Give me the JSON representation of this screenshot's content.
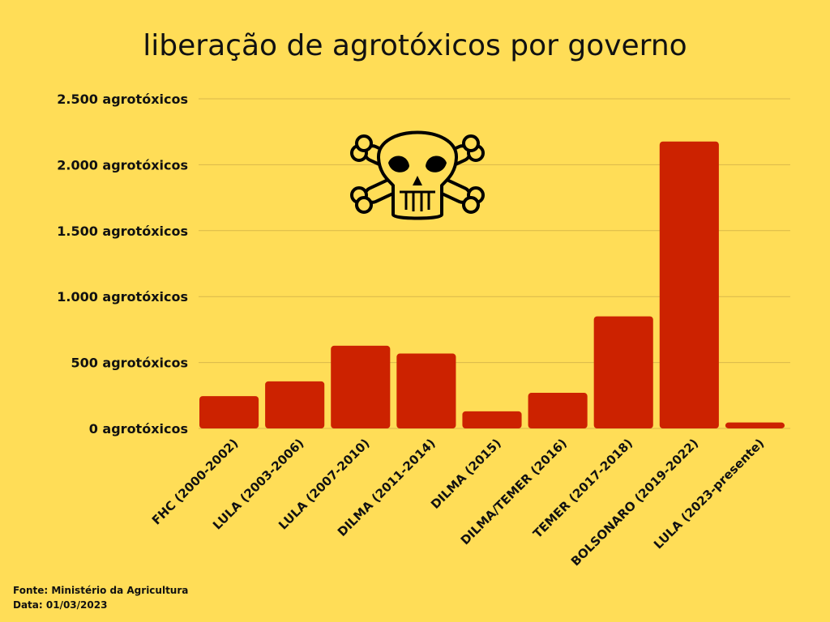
{
  "chart_data": {
    "type": "bar",
    "title": "liberação de agrotóxicos por governo",
    "categories": [
      "FHC (2000-2002)",
      "LULA (2003-2006)",
      "LULA (2007-2010)",
      "DILMA (2011-2014)",
      "DILMA (2015)",
      "DILMA/TEMER (2016)",
      "TEMER (2017-2018)",
      "BOLSONARO (2019-2022)",
      "LULA (2023-presente)"
    ],
    "values": [
      245,
      357,
      627,
      568,
      130,
      270,
      850,
      2176,
      45
    ],
    "ylim": [
      0,
      2500
    ],
    "yticks": [
      0,
      500,
      1000,
      1500,
      2000,
      2500
    ],
    "ytick_labels": [
      "0 agrotóxicos",
      "500 agrotóxicos",
      "1.000 agrotóxicos",
      "1.500 agrotóxicos",
      "2.000 agrotóxicos",
      "2.500 agrotóxicos"
    ],
    "grid": true,
    "legend": "none"
  },
  "colors": {
    "background": "#FFDD57",
    "bar": "#CC2200",
    "text": "#111111",
    "grid": "#D9B84A"
  },
  "icon": "skull-crossbones-icon",
  "footer": {
    "source": "Fonte: Ministério da Agricultura",
    "date": "Data: 01/03/2023"
  }
}
